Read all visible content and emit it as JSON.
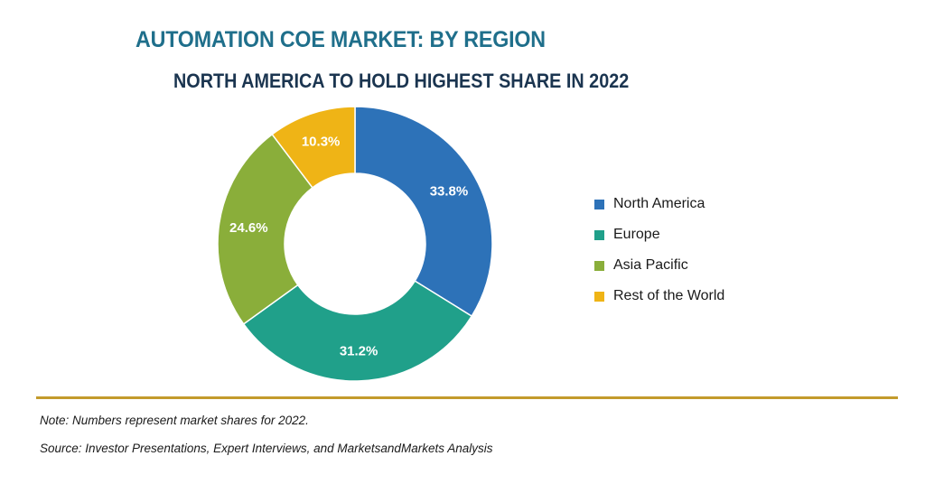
{
  "title": "AUTOMATION COE MARKET: BY REGION",
  "subtitle": "NORTH AMERICA TO HOLD HIGHEST SHARE IN 2022",
  "chart_data": {
    "type": "pie",
    "variant": "donut",
    "categories": [
      "North America",
      "Europe",
      "Asia Pacific",
      "Rest of the World"
    ],
    "values": [
      33.8,
      31.2,
      24.6,
      10.3
    ],
    "labels": [
      "33.8%",
      "31.2%",
      "24.6%",
      "10.3%"
    ],
    "colors": [
      "#2d72b8",
      "#20a08a",
      "#8aae3a",
      "#efb416"
    ],
    "legend_placement": "right"
  },
  "note": "Note: Numbers represent market shares for 2022.",
  "source": "Source: Investor Presentations, Expert Interviews, and MarketsandMarkets Analysis"
}
